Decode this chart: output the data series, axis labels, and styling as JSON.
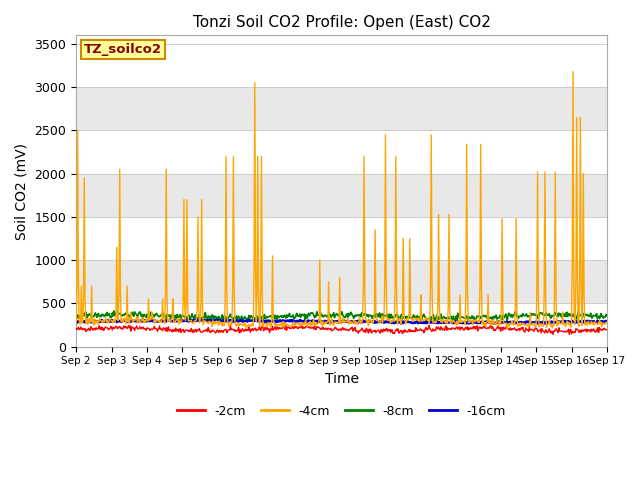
{
  "title": "Tonzi Soil CO2 Profile: Open (East) CO2",
  "xlabel": "Time",
  "ylabel": "Soil CO2 (mV)",
  "ylim": [
    0,
    3600
  ],
  "yticks": [
    0,
    500,
    1000,
    1500,
    2000,
    2500,
    3000,
    3500
  ],
  "label_box_text": "TZ_soilco2",
  "legend_labels": [
    "-2cm",
    "-4cm",
    "-8cm",
    "-16cm"
  ],
  "line_colors": [
    "#ff0000",
    "#ffa500",
    "#008000",
    "#0000cc"
  ],
  "bg_color": "#ffffff",
  "plot_bg_color": "#ffffff",
  "band_color_gray": "#e8e8e8",
  "band_color_white": "#ffffff",
  "n_points": 720,
  "x_start_day": 2,
  "x_end_day": 17,
  "xtick_days": [
    2,
    3,
    4,
    5,
    6,
    7,
    8,
    9,
    10,
    11,
    12,
    13,
    14,
    15,
    16,
    17
  ],
  "xtick_labels": [
    "Sep 2",
    "Sep 3",
    "Sep 4",
    "Sep 5",
    "Sep 6",
    "Sep 7",
    "Sep 8",
    "Sep 9",
    "Sep 10",
    "Sep 11",
    "Sep 12",
    "Sep 13",
    "Sep 14",
    "Sep 15",
    "Sep 16",
    "Sep 17"
  ],
  "spike_days": [
    2.05,
    2.15,
    2.25,
    2.45,
    2.7,
    3.15,
    3.25,
    3.45,
    3.55,
    4.05,
    4.15,
    4.45,
    4.55,
    4.75,
    5.05,
    5.15,
    5.45,
    5.55,
    6.25,
    6.45,
    7.05,
    7.15,
    7.25,
    7.55,
    8.9,
    9.15,
    9.45,
    10.15,
    10.45,
    10.75,
    11.05,
    11.25,
    11.45,
    11.75,
    12.05,
    12.25,
    12.55,
    12.85,
    13.05,
    13.45,
    13.65,
    14.05,
    14.45,
    14.85,
    15.05,
    15.25,
    15.55,
    15.75,
    16.05,
    16.15,
    16.25,
    16.35
  ],
  "spike_heights": [
    2500,
    700,
    1950,
    700,
    300,
    1150,
    2050,
    700,
    400,
    550,
    400,
    550,
    2050,
    550,
    1700,
    1700,
    1500,
    1700,
    2200,
    2200,
    3050,
    2200,
    2200,
    1050,
    1000,
    750,
    800,
    2200,
    1350,
    2450,
    2200,
    1250,
    1250,
    600,
    2450,
    1530,
    1530,
    600,
    2340,
    2340,
    600,
    1480,
    1480,
    400,
    2020,
    2020,
    2020,
    400,
    3180,
    2650,
    2650,
    2000
  ]
}
